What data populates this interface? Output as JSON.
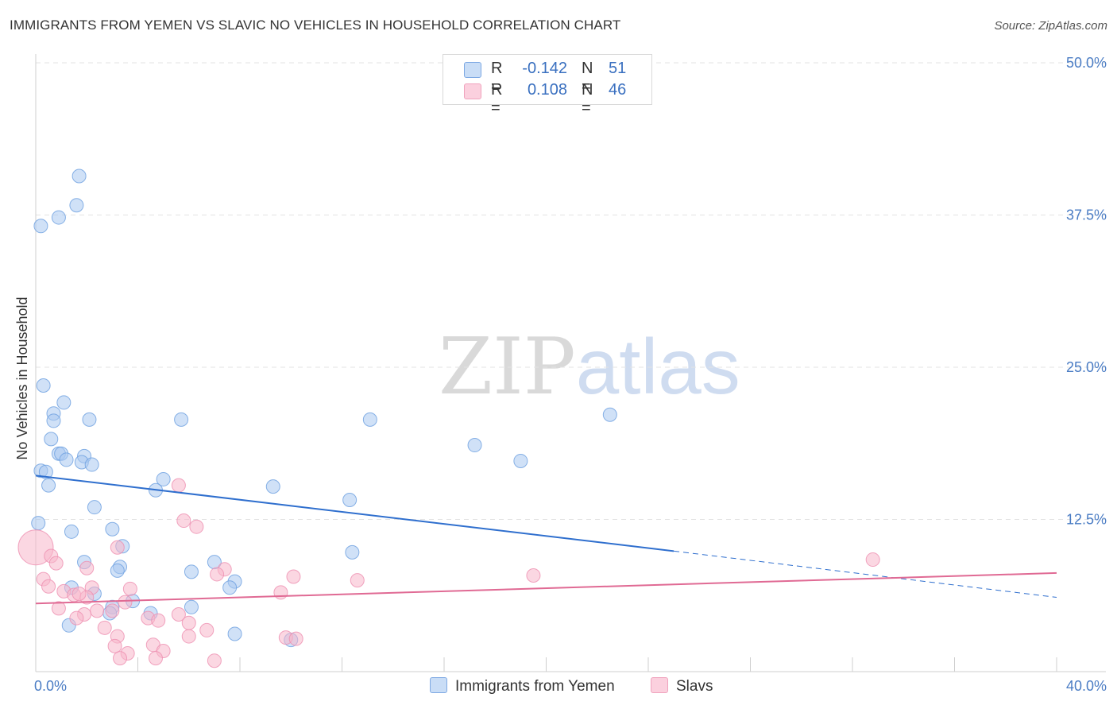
{
  "title": "IMMIGRANTS FROM YEMEN VS SLAVIC NO VEHICLES IN HOUSEHOLD CORRELATION CHART",
  "source": "Source: ZipAtlas.com",
  "watermark": {
    "zip": "ZIP",
    "atlas": "atlas"
  },
  "legend": {
    "rows": [
      {
        "r_label": "R =",
        "r_value": "-0.142",
        "n_label": "N =",
        "n_value": "51",
        "color": "#a9c8f0"
      },
      {
        "r_label": "R =",
        "r_value": "0.108",
        "n_label": "N =",
        "n_value": "46",
        "color": "#f7b6cb"
      }
    ]
  },
  "chart_data": {
    "type": "scatter",
    "title": "IMMIGRANTS FROM YEMEN VS SLAVIC NO VEHICLES IN HOUSEHOLD CORRELATION CHART",
    "xlabel": "",
    "ylabel": "No Vehicles in Household",
    "xlim": [
      0,
      40
    ],
    "ylim": [
      0,
      50
    ],
    "x_tick_labels": [
      "0.0%",
      "40.0%"
    ],
    "y_ticks": [
      12.5,
      25.0,
      37.5,
      50.0
    ],
    "y_tick_labels": [
      "12.5%",
      "25.0%",
      "37.5%",
      "50.0%"
    ],
    "grid": true,
    "legend_position": "top-center",
    "series": [
      {
        "name": "Immigrants from Yemen",
        "color": "#6b9fe0",
        "fill": "#a9c8f0",
        "trend": {
          "x0": 0,
          "y0": 16.1,
          "x1": 25,
          "y1": 9.9,
          "dashed_to_x": 40,
          "dashed_to_y": 6.1,
          "color": "#2f6fce"
        },
        "points": [
          [
            0.2,
            36.6
          ],
          [
            1.7,
            40.7
          ],
          [
            1.6,
            38.3
          ],
          [
            0.9,
            37.3
          ],
          [
            0.3,
            23.5
          ],
          [
            1.1,
            22.1
          ],
          [
            0.7,
            21.2
          ],
          [
            0.7,
            20.6
          ],
          [
            2.1,
            20.7
          ],
          [
            5.7,
            20.7
          ],
          [
            13.1,
            20.7
          ],
          [
            22.5,
            21.1
          ],
          [
            0.6,
            19.1
          ],
          [
            17.2,
            18.6
          ],
          [
            0.9,
            17.9
          ],
          [
            1.0,
            17.9
          ],
          [
            1.9,
            17.7
          ],
          [
            1.2,
            17.4
          ],
          [
            1.8,
            17.2
          ],
          [
            2.2,
            17.0
          ],
          [
            19.0,
            17.3
          ],
          [
            0.2,
            16.5
          ],
          [
            0.4,
            16.4
          ],
          [
            5.0,
            15.8
          ],
          [
            0.5,
            15.3
          ],
          [
            4.7,
            14.9
          ],
          [
            9.3,
            15.2
          ],
          [
            12.3,
            14.1
          ],
          [
            2.3,
            13.5
          ],
          [
            0.1,
            12.2
          ],
          [
            3.0,
            11.7
          ],
          [
            1.4,
            11.5
          ],
          [
            3.4,
            10.3
          ],
          [
            12.4,
            9.8
          ],
          [
            1.9,
            9.0
          ],
          [
            3.3,
            8.6
          ],
          [
            3.2,
            8.3
          ],
          [
            6.1,
            8.2
          ],
          [
            7.0,
            9.0
          ],
          [
            7.8,
            7.4
          ],
          [
            7.6,
            6.9
          ],
          [
            1.4,
            6.9
          ],
          [
            2.3,
            6.4
          ],
          [
            3.8,
            5.8
          ],
          [
            6.1,
            5.3
          ],
          [
            3.0,
            5.3
          ],
          [
            2.9,
            4.8
          ],
          [
            4.5,
            4.8
          ],
          [
            1.3,
            3.8
          ],
          [
            7.8,
            3.1
          ],
          [
            10.0,
            2.6
          ]
        ]
      },
      {
        "name": "Slavs",
        "color": "#ee8fb0",
        "fill": "#f7b6cb",
        "trend": {
          "x0": 0,
          "y0": 5.6,
          "x1": 40,
          "y1": 8.1,
          "color": "#e06a94"
        },
        "points": [
          [
            0.0,
            10.2
          ],
          [
            0.6,
            9.5
          ],
          [
            0.8,
            8.9
          ],
          [
            2.0,
            8.5
          ],
          [
            3.2,
            10.2
          ],
          [
            5.6,
            15.3
          ],
          [
            5.8,
            12.4
          ],
          [
            6.3,
            11.9
          ],
          [
            7.4,
            8.4
          ],
          [
            7.1,
            8.0
          ],
          [
            0.3,
            7.6
          ],
          [
            0.5,
            7.0
          ],
          [
            2.2,
            6.9
          ],
          [
            1.1,
            6.6
          ],
          [
            1.5,
            6.3
          ],
          [
            2.0,
            6.1
          ],
          [
            1.7,
            6.4
          ],
          [
            3.7,
            6.8
          ],
          [
            9.6,
            6.5
          ],
          [
            10.1,
            7.8
          ],
          [
            12.6,
            7.5
          ],
          [
            19.5,
            7.9
          ],
          [
            32.8,
            9.2
          ],
          [
            3.5,
            5.7
          ],
          [
            0.9,
            5.2
          ],
          [
            2.4,
            5.0
          ],
          [
            1.9,
            4.7
          ],
          [
            3.0,
            5.0
          ],
          [
            1.6,
            4.4
          ],
          [
            4.4,
            4.4
          ],
          [
            4.8,
            4.2
          ],
          [
            5.6,
            4.7
          ],
          [
            6.0,
            4.0
          ],
          [
            2.7,
            3.6
          ],
          [
            3.2,
            2.9
          ],
          [
            6.7,
            3.4
          ],
          [
            9.8,
            2.8
          ],
          [
            10.2,
            2.7
          ],
          [
            6.0,
            2.9
          ],
          [
            3.1,
            2.1
          ],
          [
            4.6,
            2.2
          ],
          [
            5.0,
            1.7
          ],
          [
            3.6,
            1.5
          ],
          [
            3.3,
            1.1
          ],
          [
            4.7,
            1.1
          ],
          [
            7.0,
            0.9
          ]
        ]
      }
    ]
  }
}
